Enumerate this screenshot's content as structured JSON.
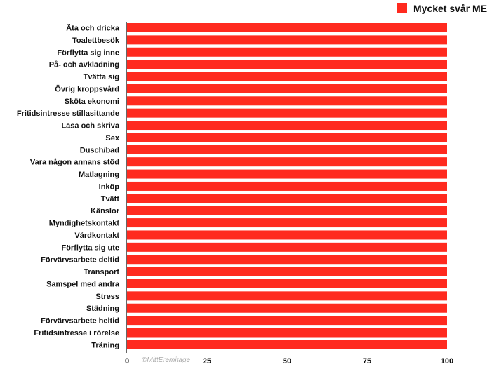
{
  "chart_data": {
    "type": "bar",
    "orientation": "horizontal",
    "categories": [
      "Äta och dricka",
      "Toalettbesök",
      "Förflytta sig inne",
      "På- och avklädning",
      "Tvätta sig",
      "Övrig kroppsvård",
      "Sköta ekonomi",
      "Fritidsintresse stillasittande",
      "Läsa och skriva",
      "Sex",
      "Dusch/bad",
      "Vara någon annans stöd",
      "Matlagning",
      "Inköp",
      "Tvätt",
      "Känslor",
      "Myndighetskontakt",
      "Vårdkontakt",
      "Förflytta sig ute",
      "Förvärvsarbete deltid",
      "Transport",
      "Samspel med andra",
      "Stress",
      "Städning",
      "Förvärvsarbete heltid",
      "Fritidsintresse i rörelse",
      "Träning"
    ],
    "series": [
      {
        "name": "Mycket svår ME",
        "color": "#ff2a1f",
        "values": [
          100,
          100,
          100,
          100,
          100,
          100,
          100,
          100,
          100,
          100,
          100,
          100,
          100,
          100,
          100,
          100,
          100,
          100,
          100,
          100,
          100,
          100,
          100,
          100,
          100,
          100,
          100
        ]
      }
    ],
    "xlim": [
      0,
      100
    ],
    "xticks": [
      "0",
      "25",
      "50",
      "75",
      "100"
    ],
    "legend_position": "top-right",
    "grid": false,
    "watermark": "©MittEremitage"
  }
}
